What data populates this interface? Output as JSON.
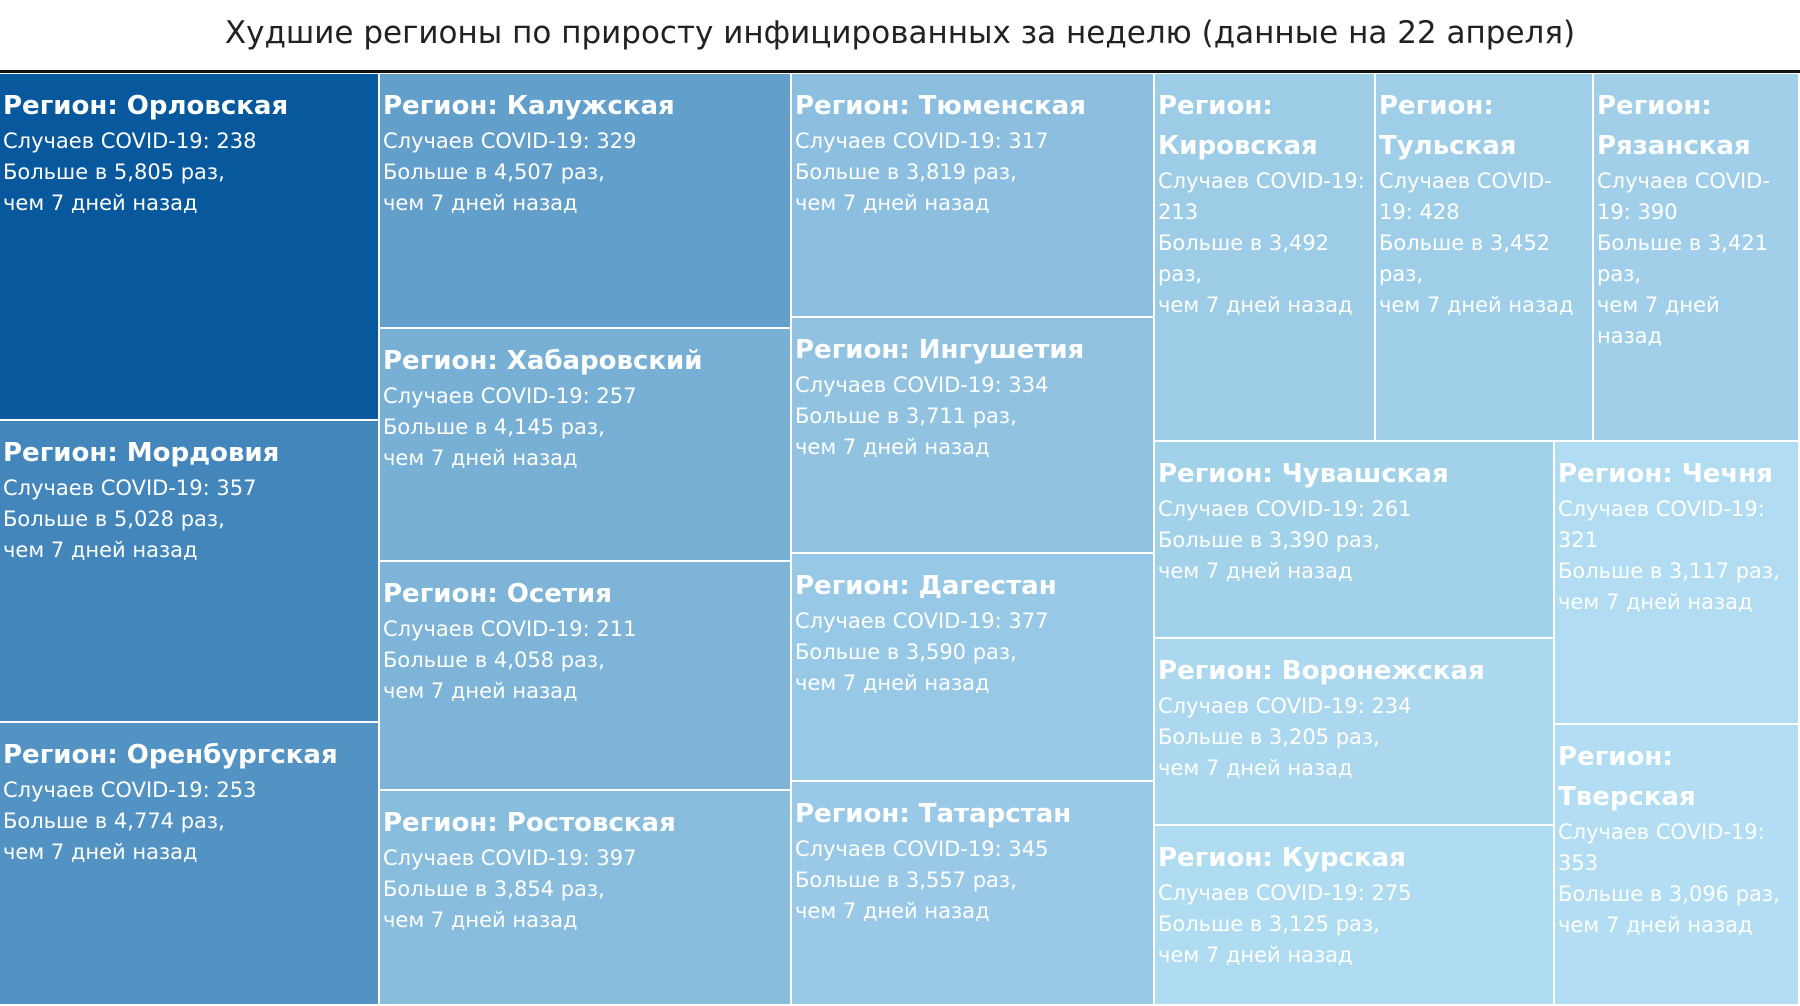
{
  "title": "Худшие регионы по приросту инфицированных за неделю (данные на 22 апреля)",
  "labels": {
    "region_prefix": "Регион:",
    "cases_prefix": "Случаев COVID-19:",
    "ratio_prefix": "Больше в",
    "ratio_suffix": "раз,",
    "days_ago": "чем 7 дней назад"
  },
  "colors": {
    "scale": [
      "#08589e",
      "#1f78b4",
      "#3f8fc4",
      "#5ea9d6",
      "#79bde4",
      "#9ad1ee",
      "#b7def2"
    ]
  },
  "chart_data": {
    "type": "treemap",
    "title": "Худшие регионы по приросту инфицированных за неделю (данные на 22 апреля)",
    "size_measure": "Больше в ... раз, чем 7 дней назад",
    "regions": [
      {
        "name": "Орловская",
        "cases": 238,
        "ratio": "5,805"
      },
      {
        "name": "Мордовия",
        "cases": 357,
        "ratio": "5,028"
      },
      {
        "name": "Оренбургская",
        "cases": 253,
        "ratio": "4,774"
      },
      {
        "name": "Калужская",
        "cases": 329,
        "ratio": "4,507"
      },
      {
        "name": "Хабаровский",
        "cases": 257,
        "ratio": "4,145"
      },
      {
        "name": "Осетия",
        "cases": 211,
        "ratio": "4,058"
      },
      {
        "name": "Ростовская",
        "cases": 397,
        "ratio": "3,854"
      },
      {
        "name": "Тюменская",
        "cases": 317,
        "ratio": "3,819"
      },
      {
        "name": "Ингушетия",
        "cases": 334,
        "ratio": "3,711"
      },
      {
        "name": "Дагестан",
        "cases": 377,
        "ratio": "3,590"
      },
      {
        "name": "Татарстан",
        "cases": 345,
        "ratio": "3,557"
      },
      {
        "name": "Кировская",
        "cases": 213,
        "ratio": "3,492"
      },
      {
        "name": "Тульская",
        "cases": 428,
        "ratio": "3,452"
      },
      {
        "name": "Рязанская",
        "cases": 390,
        "ratio": "3,421"
      },
      {
        "name": "Чувашская",
        "cases": 261,
        "ratio": "3,390"
      },
      {
        "name": "Воронежская",
        "cases": 234,
        "ratio": "3,205"
      },
      {
        "name": "Курская",
        "cases": 275,
        "ratio": "3,125"
      },
      {
        "name": "Чечня",
        "cases": 321,
        "ratio": "3,117"
      },
      {
        "name": "Тверская",
        "cases": 353,
        "ratio": "3,096"
      }
    ]
  }
}
